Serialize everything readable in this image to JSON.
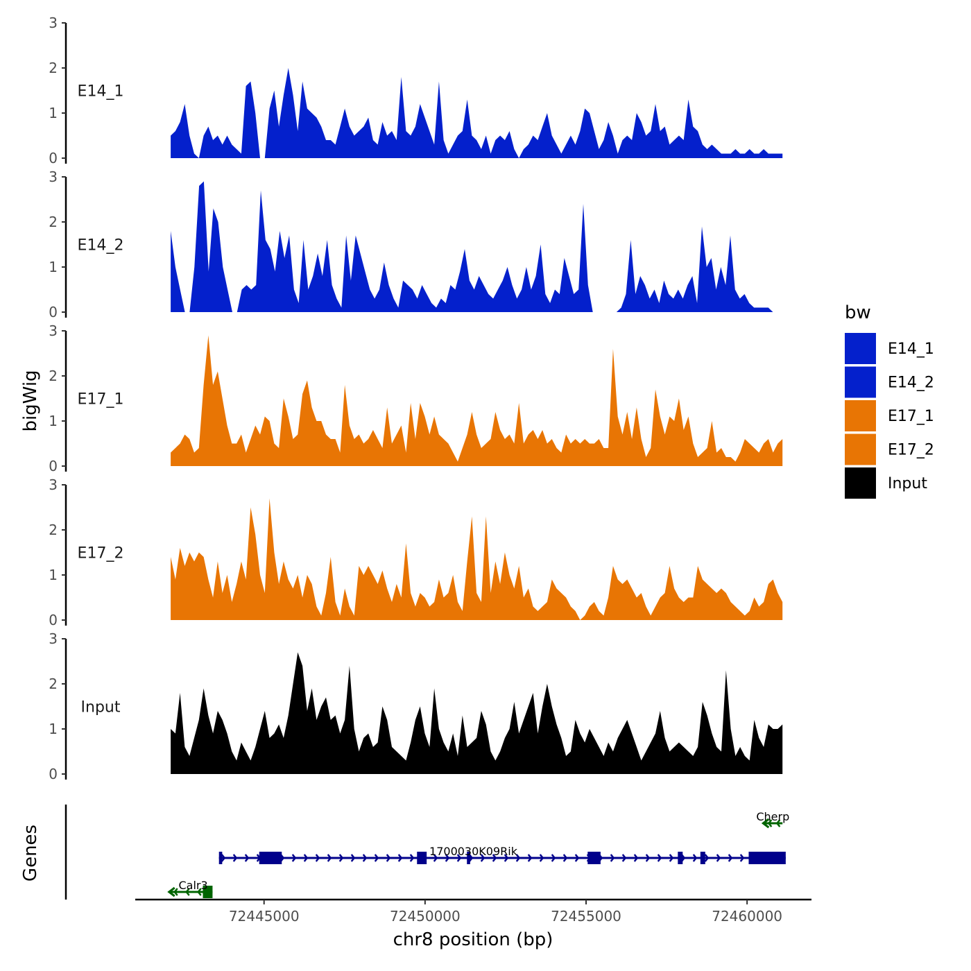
{
  "chart_data": {
    "type": "area",
    "title": "",
    "xlabel": "chr8 position (bp)",
    "ylabel": "bigWig",
    "genes_label": "Genes",
    "xlim": [
      72441000,
      72462000
    ],
    "ylim": [
      0,
      3
    ],
    "y_ticks": [
      "0",
      "1",
      "2",
      "3"
    ],
    "x_ticks": [
      {
        "value": 72445000,
        "label": "72445000"
      },
      {
        "value": 72450000,
        "label": "72450000"
      },
      {
        "value": 72455000,
        "label": "72455000"
      },
      {
        "value": 72460000,
        "label": "72460000"
      }
    ],
    "x_start": 72442100,
    "x_end": 72461100,
    "legend": {
      "title": "bw",
      "entries": [
        {
          "label": "E14_1",
          "color": "#0420cc"
        },
        {
          "label": "E14_2",
          "color": "#0420cc"
        },
        {
          "label": "E17_1",
          "color": "#e87504"
        },
        {
          "label": "E17_2",
          "color": "#e87504"
        },
        {
          "label": "Input",
          "color": "#000000"
        }
      ]
    },
    "series": [
      {
        "name": "E14_1",
        "color": "#0420cc",
        "values": [
          0.5,
          0.6,
          0.8,
          1.2,
          0.5,
          0.1,
          0,
          0.5,
          0.7,
          0.4,
          0.5,
          0.3,
          0.5,
          0.3,
          0.2,
          0.1,
          1.6,
          1.7,
          1,
          0,
          0,
          1.1,
          1.5,
          0.7,
          1.4,
          2.0,
          1.4,
          0.6,
          1.7,
          1.1,
          1.0,
          0.9,
          0.7,
          0.4,
          0.4,
          0.3,
          0.7,
          1.1,
          0.7,
          0.5,
          0.6,
          0.7,
          0.9,
          0.4,
          0.3,
          0.8,
          0.5,
          0.6,
          0.4,
          1.8,
          0.6,
          0.5,
          0.7,
          1.2,
          0.9,
          0.6,
          0.3,
          1.7,
          0.4,
          0.1,
          0.3,
          0.5,
          0.6,
          1.3,
          0.5,
          0.4,
          0.2,
          0.5,
          0.1,
          0.4,
          0.5,
          0.4,
          0.6,
          0.2,
          0,
          0.2,
          0.3,
          0.5,
          0.4,
          0.7,
          1.0,
          0.5,
          0.3,
          0.1,
          0.3,
          0.5,
          0.3,
          0.6,
          1.1,
          1.0,
          0.6,
          0.2,
          0.4,
          0.8,
          0.5,
          0.1,
          0.4,
          0.5,
          0.4,
          1.0,
          0.8,
          0.5,
          0.6,
          1.2,
          0.6,
          0.7,
          0.3,
          0.4,
          0.5,
          0.4,
          1.3,
          0.7,
          0.6,
          0.3,
          0.2,
          0.3,
          0.2,
          0.1,
          0.1,
          0.1,
          0.2,
          0.1,
          0.1,
          0.2,
          0.1,
          0.1,
          0.2,
          0.1,
          0.1,
          0.1,
          0.1
        ]
      },
      {
        "name": "E14_2",
        "color": "#0420cc",
        "values": [
          1.8,
          1.0,
          0.5,
          0,
          0,
          1.0,
          2.8,
          2.9,
          0.9,
          2.3,
          2.0,
          1.0,
          0.5,
          0,
          0,
          0.5,
          0.6,
          0.5,
          0.6,
          2.7,
          1.6,
          1.4,
          0.9,
          1.8,
          1.2,
          1.7,
          0.5,
          0.2,
          1.6,
          0.5,
          0.8,
          1.3,
          0.8,
          1.6,
          0.6,
          0.3,
          0.1,
          1.7,
          0.7,
          1.7,
          1.3,
          0.9,
          0.5,
          0.3,
          0.5,
          1.1,
          0.6,
          0.3,
          0.1,
          0.7,
          0.6,
          0.5,
          0.3,
          0.6,
          0.4,
          0.2,
          0.1,
          0.3,
          0.2,
          0.6,
          0.5,
          0.9,
          1.4,
          0.7,
          0.5,
          0.8,
          0.6,
          0.4,
          0.3,
          0.5,
          0.7,
          1.0,
          0.6,
          0.3,
          0.5,
          1.0,
          0.5,
          0.8,
          1.5,
          0.4,
          0.2,
          0.5,
          0.4,
          1.2,
          0.8,
          0.4,
          0.5,
          2.4,
          0.6,
          0,
          0,
          0,
          0,
          0,
          0,
          0.1,
          0.4,
          1.6,
          0.4,
          0.8,
          0.6,
          0.3,
          0.5,
          0.2,
          0.7,
          0.4,
          0.3,
          0.5,
          0.3,
          0.6,
          0.8,
          0.2,
          1.9,
          1.0,
          1.2,
          0.5,
          1.0,
          0.6,
          1.7,
          0.5,
          0.3,
          0.4,
          0.2,
          0.1,
          0.1,
          0.1,
          0.1,
          0,
          0,
          0
        ]
      },
      {
        "name": "E17_1",
        "color": "#e87504",
        "values": [
          0.3,
          0.4,
          0.5,
          0.7,
          0.6,
          0.3,
          0.4,
          1.8,
          2.9,
          1.8,
          2.1,
          1.5,
          0.9,
          0.5,
          0.5,
          0.7,
          0.3,
          0.6,
          0.9,
          0.7,
          1.1,
          1.0,
          0.5,
          0.4,
          1.5,
          1.1,
          0.6,
          0.7,
          1.6,
          1.9,
          1.3,
          1.0,
          1.0,
          0.7,
          0.6,
          0.6,
          0.3,
          1.8,
          0.9,
          0.6,
          0.7,
          0.5,
          0.6,
          0.8,
          0.6,
          0.4,
          1.3,
          0.5,
          0.7,
          0.9,
          0.3,
          1.4,
          0.6,
          1.4,
          1.1,
          0.7,
          1.1,
          0.7,
          0.6,
          0.5,
          0.3,
          0.1,
          0.4,
          0.7,
          1.2,
          0.7,
          0.4,
          0.5,
          0.6,
          1.2,
          0.8,
          0.6,
          0.7,
          0.5,
          1.4,
          0.5,
          0.7,
          0.8,
          0.6,
          0.8,
          0.5,
          0.6,
          0.4,
          0.3,
          0.7,
          0.5,
          0.6,
          0.5,
          0.6,
          0.5,
          0.5,
          0.6,
          0.4,
          0.4,
          2.6,
          1.1,
          0.7,
          1.2,
          0.6,
          1.3,
          0.6,
          0.2,
          0.4,
          1.7,
          1.1,
          0.7,
          1.1,
          1.0,
          1.5,
          0.8,
          1.1,
          0.5,
          0.2,
          0.3,
          0.4,
          1.0,
          0.3,
          0.4,
          0.2,
          0.2,
          0.1,
          0.3,
          0.6,
          0.5,
          0.4,
          0.3,
          0.5,
          0.6,
          0.3,
          0.5,
          0.6
        ]
      },
      {
        "name": "E17_2",
        "color": "#e87504",
        "values": [
          1.4,
          0.9,
          1.6,
          1.2,
          1.5,
          1.3,
          1.5,
          1.4,
          0.9,
          0.5,
          1.3,
          0.6,
          1.0,
          0.4,
          0.8,
          1.3,
          0.9,
          2.5,
          1.9,
          1.0,
          0.6,
          2.7,
          1.5,
          0.8,
          1.3,
          0.9,
          0.7,
          1.0,
          0.5,
          1.0,
          0.8,
          0.3,
          0.1,
          0.6,
          1.4,
          0.4,
          0.1,
          0.7,
          0.3,
          0.1,
          1.2,
          1.0,
          1.2,
          1.0,
          0.8,
          1.1,
          0.7,
          0.4,
          0.8,
          0.5,
          1.7,
          0.6,
          0.3,
          0.6,
          0.5,
          0.3,
          0.4,
          0.9,
          0.5,
          0.6,
          1.0,
          0.4,
          0.2,
          1.3,
          2.3,
          0.6,
          0.4,
          2.3,
          0.6,
          1.3,
          0.8,
          1.5,
          1.0,
          0.7,
          1.2,
          0.5,
          0.7,
          0.3,
          0.2,
          0.3,
          0.4,
          0.9,
          0.7,
          0.6,
          0.5,
          0.3,
          0.2,
          0,
          0.1,
          0.3,
          0.4,
          0.2,
          0.1,
          0.5,
          1.2,
          0.9,
          0.8,
          0.9,
          0.7,
          0.5,
          0.6,
          0.3,
          0.1,
          0.3,
          0.5,
          0.6,
          1.2,
          0.7,
          0.5,
          0.4,
          0.5,
          0.5,
          1.2,
          0.9,
          0.8,
          0.7,
          0.6,
          0.7,
          0.6,
          0.4,
          0.3,
          0.2,
          0.1,
          0.2,
          0.5,
          0.3,
          0.4,
          0.8,
          0.9,
          0.6,
          0.4
        ]
      },
      {
        "name": "Input",
        "color": "#000000",
        "values": [
          1.0,
          0.9,
          1.8,
          0.6,
          0.4,
          0.8,
          1.2,
          1.9,
          1.3,
          0.9,
          1.4,
          1.2,
          0.9,
          0.5,
          0.3,
          0.7,
          0.5,
          0.3,
          0.6,
          1.0,
          1.4,
          0.8,
          0.9,
          1.1,
          0.8,
          1.3,
          2.0,
          2.7,
          2.4,
          1.4,
          1.9,
          1.2,
          1.5,
          1.7,
          1.2,
          1.3,
          0.9,
          1.2,
          2.4,
          1.0,
          0.5,
          0.8,
          0.9,
          0.6,
          0.7,
          1.5,
          1.2,
          0.6,
          0.5,
          0.4,
          0.3,
          0.7,
          1.2,
          1.5,
          0.9,
          0.6,
          1.9,
          1.0,
          0.7,
          0.5,
          0.9,
          0.4,
          1.3,
          0.6,
          0.7,
          0.8,
          1.4,
          1.1,
          0.5,
          0.3,
          0.5,
          0.8,
          1.0,
          1.6,
          0.9,
          1.2,
          1.5,
          1.8,
          0.9,
          1.5,
          2.0,
          1.5,
          1.1,
          0.8,
          0.4,
          0.5,
          1.2,
          0.9,
          0.7,
          1.0,
          0.8,
          0.6,
          0.4,
          0.7,
          0.5,
          0.8,
          1.0,
          1.2,
          0.9,
          0.6,
          0.3,
          0.5,
          0.7,
          0.9,
          1.4,
          0.8,
          0.5,
          0.6,
          0.7,
          0.6,
          0.5,
          0.4,
          0.6,
          1.6,
          1.3,
          0.9,
          0.6,
          0.5,
          2.3,
          1.0,
          0.4,
          0.6,
          0.4,
          0.3,
          1.2,
          0.8,
          0.6,
          1.1,
          1.0,
          1.0,
          1.1
        ]
      }
    ],
    "genes": [
      {
        "name": "1700030K09Rik",
        "strand": "+",
        "color": "#00008b",
        "start": 72443600,
        "end": 72461200,
        "row": 1,
        "exons": [
          [
            72443600,
            72443700
          ],
          [
            72444850,
            72445550
          ],
          [
            72449750,
            72450050
          ],
          [
            72451300,
            72451400
          ],
          [
            72455050,
            72455450
          ],
          [
            72457850,
            72458000
          ],
          [
            72458550,
            72458700
          ],
          [
            72460050,
            72461200
          ]
        ]
      },
      {
        "name": "Cherp",
        "strand": "-",
        "color": "#006400",
        "start": 72460500,
        "end": 72461100,
        "row": 2,
        "exons": [],
        "arrow_only": true
      },
      {
        "name": "Calr3",
        "strand": "-",
        "color": "#006400",
        "start": 72442050,
        "end": 72443400,
        "row": 0,
        "exons": [
          [
            72443100,
            72443400
          ]
        ]
      }
    ]
  }
}
